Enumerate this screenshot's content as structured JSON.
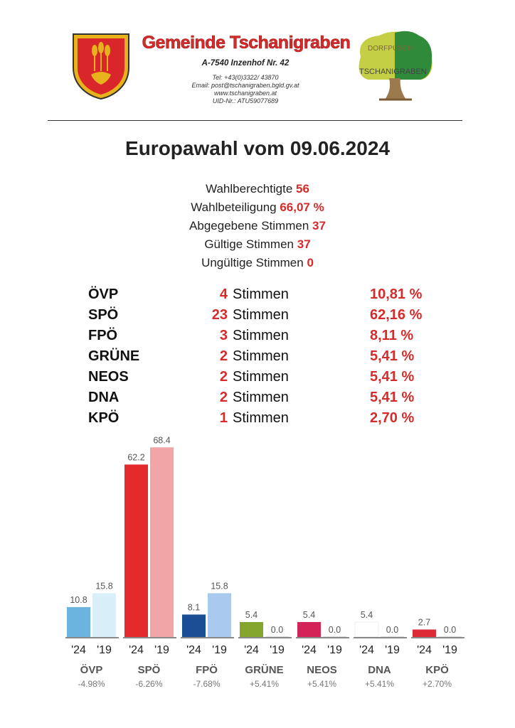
{
  "header": {
    "title": "Gemeinde Tschanigraben",
    "address": "A-7540 Inzenhof Nr. 42",
    "tel": "Tel: +43(0)3322/ 43870",
    "email": "Email: post@tschanigraben.bgld.gv.at",
    "web": "www.tschanigraben.at",
    "uid": "UID-Nr.: ATU59077689",
    "logo_text_top": "DORFPUSCH",
    "logo_text_mid": "TSCHANIGRABEN"
  },
  "page_title": "Europawahl vom 09.06.2024",
  "stats": [
    {
      "label": "Wahlberechtigte",
      "value": "56"
    },
    {
      "label": "Wahlbeteiligung",
      "value": "66,07 %"
    },
    {
      "label": "Abgegebene Stimmen",
      "value": "37"
    },
    {
      "label": "Gültige Stimmen",
      "value": "37"
    },
    {
      "label": "Ungültige Stimmen",
      "value": "0"
    }
  ],
  "results": [
    {
      "party": "ÖVP",
      "votes": "4",
      "unit": "Stimmen",
      "percent": "10,81 %"
    },
    {
      "party": "SPÖ",
      "votes": "23",
      "unit": "Stimmen",
      "percent": "62,16 %"
    },
    {
      "party": "FPÖ",
      "votes": "3",
      "unit": "Stimmen",
      "percent": "8,11 %"
    },
    {
      "party": "GRÜNE",
      "votes": "2",
      "unit": "Stimmen",
      "percent": "5,41 %"
    },
    {
      "party": "NEOS",
      "votes": "2",
      "unit": "Stimmen",
      "percent": "5,41 %"
    },
    {
      "party": "DNA",
      "votes": "2",
      "unit": "Stimmen",
      "percent": "5,41 %"
    },
    {
      "party": "KPÖ",
      "votes": "1",
      "unit": "Stimmen",
      "percent": "2,70 %"
    }
  ],
  "chart_data": {
    "type": "bar",
    "categories": [
      "ÖVP",
      "SPÖ",
      "FPÖ",
      "GRÜNE",
      "NEOS",
      "DNA",
      "KPÖ"
    ],
    "series": [
      {
        "name": "'24",
        "values": [
          10.8,
          62.2,
          8.1,
          5.4,
          5.4,
          5.4,
          2.7
        ]
      },
      {
        "name": "'19",
        "values": [
          15.8,
          68.4,
          15.8,
          0.0,
          0.0,
          0.0,
          0.0
        ]
      }
    ],
    "value_labels_24": [
      "10.8",
      "62.2",
      "8.1",
      "5.4",
      "5.4",
      "5.4",
      "2.7"
    ],
    "value_labels_19": [
      "15.8",
      "68.4",
      "15.8",
      "0.0",
      "0.0",
      "0.0",
      "0.0"
    ],
    "year_labels": [
      "'24",
      "'19"
    ],
    "differences": [
      "-4.98%",
      "-6.26%",
      "-7.68%",
      "+5.41%",
      "+5.41%",
      "+5.41%",
      "+2.70%"
    ],
    "colors_24": [
      "#6cb4e0",
      "#e42a2a",
      "#1a4f96",
      "#84a62c",
      "#d42357",
      "#ffffff",
      "#dd2a35"
    ],
    "colors_19": [
      "#d8eef9",
      "#f2a5a6",
      "#a9c9ee",
      "#e5ecd0",
      "#f3c2cf",
      "#ffffff",
      "#f5c4c7"
    ],
    "ylim": [
      0,
      70
    ],
    "grid": false
  }
}
